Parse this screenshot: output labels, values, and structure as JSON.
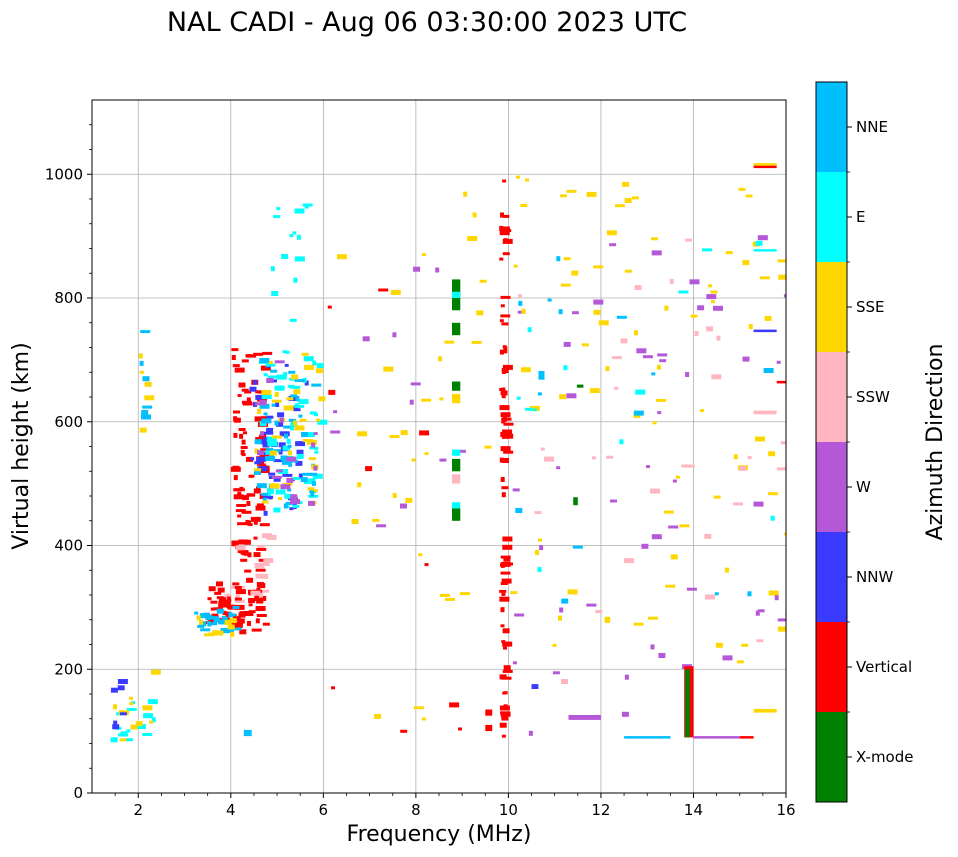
{
  "chart_data": {
    "type": "scatter",
    "title": "NAL CADI - Aug 06 03:30:00 2023 UTC",
    "xlabel": "Frequency (MHz)",
    "ylabel": "Virtual height (km)",
    "xlim": [
      1,
      16
    ],
    "ylim": [
      0,
      1120
    ],
    "xticks": [
      2,
      4,
      6,
      8,
      10,
      12,
      14,
      16
    ],
    "yticks": [
      0,
      200,
      400,
      600,
      800,
      1000
    ],
    "grid": true,
    "colorbar": {
      "label": "Azimuth Direction",
      "categories": [
        {
          "name": "X-mode",
          "color": "#008000"
        },
        {
          "name": "Vertical",
          "color": "#ff0000"
        },
        {
          "name": "NNW",
          "color": "#3b3bff"
        },
        {
          "name": "W",
          "color": "#b558d8"
        },
        {
          "name": "SSW",
          "color": "#ffb6c1"
        },
        {
          "name": "SSE",
          "color": "#ffd700"
        },
        {
          "name": "E",
          "color": "#00ffff"
        },
        {
          "name": "NNE",
          "color": "#00bfff"
        }
      ]
    },
    "clusters": [
      {
        "cat": "Vertical",
        "x": [
          4.0,
          4.7
        ],
        "y": [
          260,
          720
        ],
        "n": 130,
        "seed": 11
      },
      {
        "cat": "NNW",
        "x": [
          4.4,
          5.6
        ],
        "y": [
          450,
          700
        ],
        "n": 50,
        "seed": 12
      },
      {
        "cat": "E",
        "x": [
          4.6,
          5.9
        ],
        "y": [
          450,
          720
        ],
        "n": 55,
        "seed": 13
      },
      {
        "cat": "NNE",
        "x": [
          4.5,
          5.8
        ],
        "y": [
          450,
          700
        ],
        "n": 45,
        "seed": 14
      },
      {
        "cat": "SSE",
        "x": [
          4.5,
          5.9
        ],
        "y": [
          450,
          710
        ],
        "n": 35,
        "seed": 15
      },
      {
        "cat": "W",
        "x": [
          4.5,
          5.8
        ],
        "y": [
          450,
          700
        ],
        "n": 18,
        "seed": 16
      },
      {
        "cat": "SSW",
        "x": [
          3.8,
          4.8
        ],
        "y": [
          300,
          420
        ],
        "n": 18,
        "seed": 17
      },
      {
        "cat": "Vertical",
        "x": [
          3.4,
          4.2
        ],
        "y": [
          270,
          340
        ],
        "n": 45,
        "seed": 18
      },
      {
        "cat": "NNE",
        "x": [
          3.2,
          4.1
        ],
        "y": [
          262,
          300
        ],
        "n": 22,
        "seed": 19
      },
      {
        "cat": "SSE",
        "x": [
          3.0,
          4.0
        ],
        "y": [
          255,
          285
        ],
        "n": 10,
        "seed": 20
      },
      {
        "cat": "E",
        "x": [
          4.8,
          5.6
        ],
        "y": [
          740,
          960
        ],
        "n": 14,
        "seed": 21
      },
      {
        "cat": "Vertical",
        "x": [
          9.8,
          9.9
        ],
        "y": [
          90,
          1010
        ],
        "n": 80,
        "seed": 22
      },
      {
        "cat": "SSE",
        "x": [
          10.0,
          16.0
        ],
        "y": [
          200,
          1000
        ],
        "n": 75,
        "seed": 23
      },
      {
        "cat": "W",
        "x": [
          10.0,
          16.0
        ],
        "y": [
          90,
          900
        ],
        "n": 48,
        "seed": 24
      },
      {
        "cat": "SSW",
        "x": [
          10.0,
          16.0
        ],
        "y": [
          90,
          900
        ],
        "n": 32,
        "seed": 25
      },
      {
        "cat": "NNE",
        "x": [
          10.0,
          16.0
        ],
        "y": [
          300,
          900
        ],
        "n": 14,
        "seed": 26
      },
      {
        "cat": "E",
        "x": [
          10.0,
          16.0
        ],
        "y": [
          300,
          900
        ],
        "n": 12,
        "seed": 27
      },
      {
        "cat": "SSE",
        "x": [
          6.0,
          9.5
        ],
        "y": [
          100,
          980
        ],
        "n": 32,
        "seed": 28
      },
      {
        "cat": "W",
        "x": [
          6.0,
          9.5
        ],
        "y": [
          400,
          900
        ],
        "n": 12,
        "seed": 29
      },
      {
        "cat": "Vertical",
        "x": [
          6.0,
          9.8
        ],
        "y": [
          90,
          850
        ],
        "n": 10,
        "seed": 30
      },
      {
        "cat": "E",
        "x": [
          1.4,
          2.3
        ],
        "y": [
          85,
          150
        ],
        "n": 14,
        "seed": 31
      },
      {
        "cat": "SSE",
        "x": [
          1.4,
          2.3
        ],
        "y": [
          85,
          200
        ],
        "n": 10,
        "seed": 32
      },
      {
        "cat": "NNW",
        "x": [
          1.4,
          1.7
        ],
        "y": [
          90,
          190
        ],
        "n": 6,
        "seed": 33
      },
      {
        "cat": "NNE",
        "x": [
          2.0,
          2.1
        ],
        "y": [
          580,
          910
        ],
        "n": 6,
        "seed": 34
      },
      {
        "cat": "SSE",
        "x": [
          2.0,
          2.2
        ],
        "y": [
          580,
          740
        ],
        "n": 5,
        "seed": 35
      }
    ],
    "rects": [
      {
        "cat": "Vertical",
        "x": [
          13.8,
          14.0
        ],
        "y": [
          90,
          205
        ]
      },
      {
        "cat": "X-mode",
        "x": [
          13.82,
          13.92
        ],
        "y": [
          90,
          200
        ]
      },
      {
        "cat": "W",
        "x": [
          11.3,
          12.0
        ],
        "y": [
          118,
          126
        ]
      },
      {
        "cat": "NNE",
        "x": [
          12.5,
          13.5
        ],
        "y": [
          88,
          92
        ]
      },
      {
        "cat": "W",
        "x": [
          14.0,
          15.0
        ],
        "y": [
          88,
          92
        ]
      },
      {
        "cat": "Vertical",
        "x": [
          15.0,
          15.3
        ],
        "y": [
          88,
          92
        ]
      },
      {
        "cat": "X-mode",
        "x": [
          8.78,
          8.96
        ],
        "y": [
          780,
          830
        ]
      },
      {
        "cat": "X-mode",
        "x": [
          8.78,
          8.96
        ],
        "y": [
          740,
          760
        ]
      },
      {
        "cat": "X-mode",
        "x": [
          8.78,
          8.96
        ],
        "y": [
          650,
          665
        ]
      },
      {
        "cat": "X-mode",
        "x": [
          8.78,
          8.96
        ],
        "y": [
          520,
          540
        ]
      },
      {
        "cat": "X-mode",
        "x": [
          8.78,
          8.96
        ],
        "y": [
          440,
          460
        ]
      },
      {
        "cat": "E",
        "x": [
          8.78,
          8.96
        ],
        "y": [
          545,
          555
        ]
      },
      {
        "cat": "E",
        "x": [
          8.78,
          8.96
        ],
        "y": [
          460,
          470
        ]
      },
      {
        "cat": "E",
        "x": [
          8.78,
          8.96
        ],
        "y": [
          800,
          810
        ]
      },
      {
        "cat": "SSE",
        "x": [
          8.78,
          8.96
        ],
        "y": [
          630,
          645
        ]
      },
      {
        "cat": "SSW",
        "x": [
          8.78,
          8.96
        ],
        "y": [
          500,
          515
        ]
      },
      {
        "cat": "X-mode",
        "x": [
          11.4,
          11.5
        ],
        "y": [
          465,
          478
        ]
      },
      {
        "cat": "Vertical",
        "x": [
          15.3,
          15.8
        ],
        "y": [
          1010,
          1014
        ]
      },
      {
        "cat": "SSE",
        "x": [
          15.3,
          15.8
        ],
        "y": [
          1014,
          1018
        ]
      },
      {
        "cat": "NNW",
        "x": [
          15.3,
          15.8
        ],
        "y": [
          745,
          749
        ]
      },
      {
        "cat": "E",
        "x": [
          15.3,
          15.8
        ],
        "y": [
          875,
          879
        ]
      },
      {
        "cat": "SSW",
        "x": [
          15.3,
          15.8
        ],
        "y": [
          612,
          618
        ]
      },
      {
        "cat": "Vertical",
        "x": [
          15.8,
          16.0
        ],
        "y": [
          662,
          666
        ]
      },
      {
        "cat": "SSE",
        "x": [
          15.3,
          15.8
        ],
        "y": [
          130,
          136
        ]
      },
      {
        "cat": "Vertical",
        "x": [
          9.5,
          9.65
        ],
        "y": [
          100,
          110
        ]
      },
      {
        "cat": "Vertical",
        "x": [
          9.5,
          9.65
        ],
        "y": [
          125,
          135
        ]
      },
      {
        "cat": "NNE",
        "x": [
          4.28,
          4.45
        ],
        "y": [
          92,
          102
        ]
      },
      {
        "cat": "NNE",
        "x": [
          10.65,
          10.78
        ],
        "y": [
          668,
          682
        ]
      },
      {
        "cat": "NNW",
        "x": [
          10.5,
          10.65
        ],
        "y": [
          168,
          176
        ]
      },
      {
        "cat": "SSE",
        "x": [
          12.08,
          12.2
        ],
        "y": [
          275,
          285
        ]
      },
      {
        "cat": "X-mode",
        "x": [
          11.48,
          11.62
        ],
        "y": [
          655,
          660
        ]
      }
    ]
  }
}
